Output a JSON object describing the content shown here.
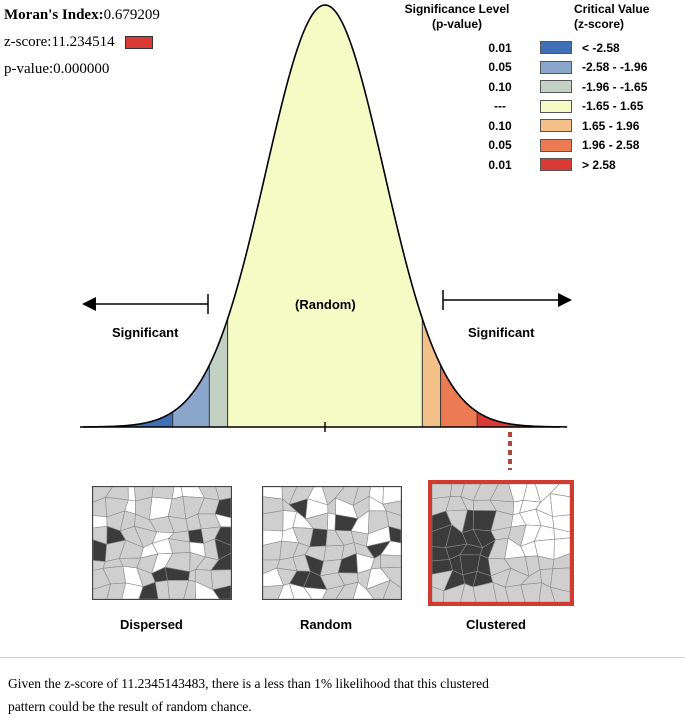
{
  "stats": {
    "morans_label": "Moran's Index:",
    "morans_value": "0.679209",
    "z_label": "z-score:",
    "z_value": "11.234514",
    "p_label": "p-value:",
    "p_value": "0.000000"
  },
  "legend": {
    "sig_header_1": "Significance Level",
    "sig_header_2": "(p-value)",
    "crit_header_1": "Critical Value",
    "crit_header_2": "(z-score)",
    "rows": [
      {
        "p": "0.01",
        "z": "< -2.58",
        "color": "#3f6fb5"
      },
      {
        "p": "0.05",
        "z": "-2.58 - -1.96",
        "color": "#8aa7cb"
      },
      {
        "p": "0.10",
        "z": "-1.96 - -1.65",
        "color": "#c3d1c5"
      },
      {
        "p": "---",
        "z": "-1.65 - 1.65",
        "color": "#f5fbc4"
      },
      {
        "p": "0.10",
        "z": "1.65 - 1.96",
        "color": "#f4c089"
      },
      {
        "p": "0.05",
        "z": "1.96 - 2.58",
        "color": "#ec7a53"
      },
      {
        "p": "0.01",
        "z": "> 2.58",
        "color": "#d93a33"
      }
    ]
  },
  "curve": {
    "random_label": "(Random)",
    "significant_left": "Significant",
    "significant_right": "Significant",
    "highlight_zone": "> 2.58"
  },
  "patterns": {
    "dispersed": "Dispersed",
    "random": "Random",
    "clustered": "Clustered",
    "selected": "Clustered"
  },
  "note": {
    "line1": "Given the z-score of 11.2345143483, there is a less than 1% likelihood that this clustered",
    "line2": "pattern could be the result of random chance."
  }
}
